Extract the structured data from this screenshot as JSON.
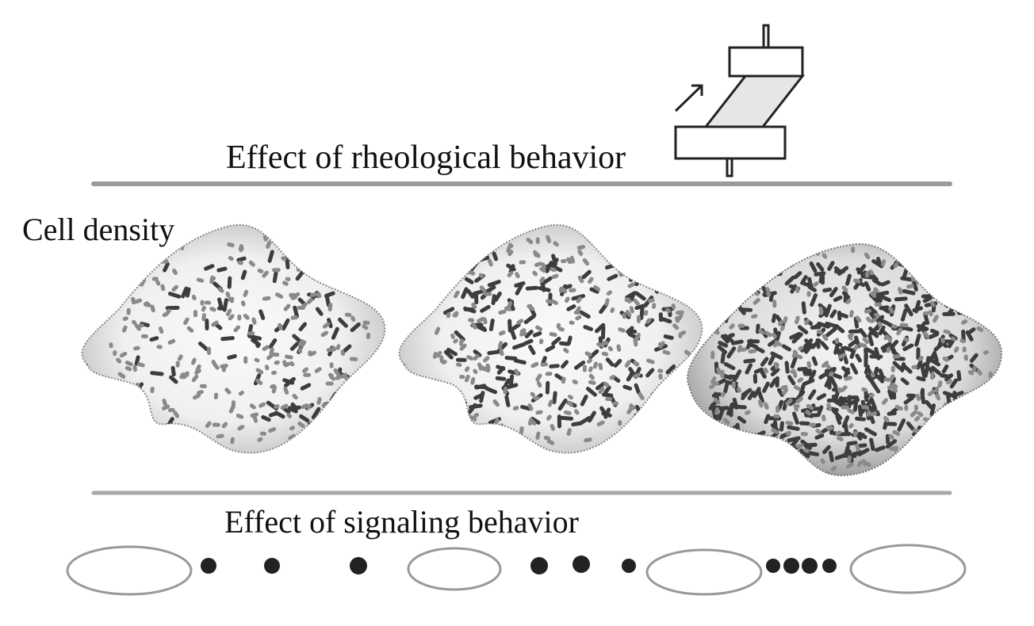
{
  "labels": {
    "rheology": "Effect of rheological behavior",
    "cell_density": "Cell density",
    "signaling": "Effect of signaling behavior"
  }
}
